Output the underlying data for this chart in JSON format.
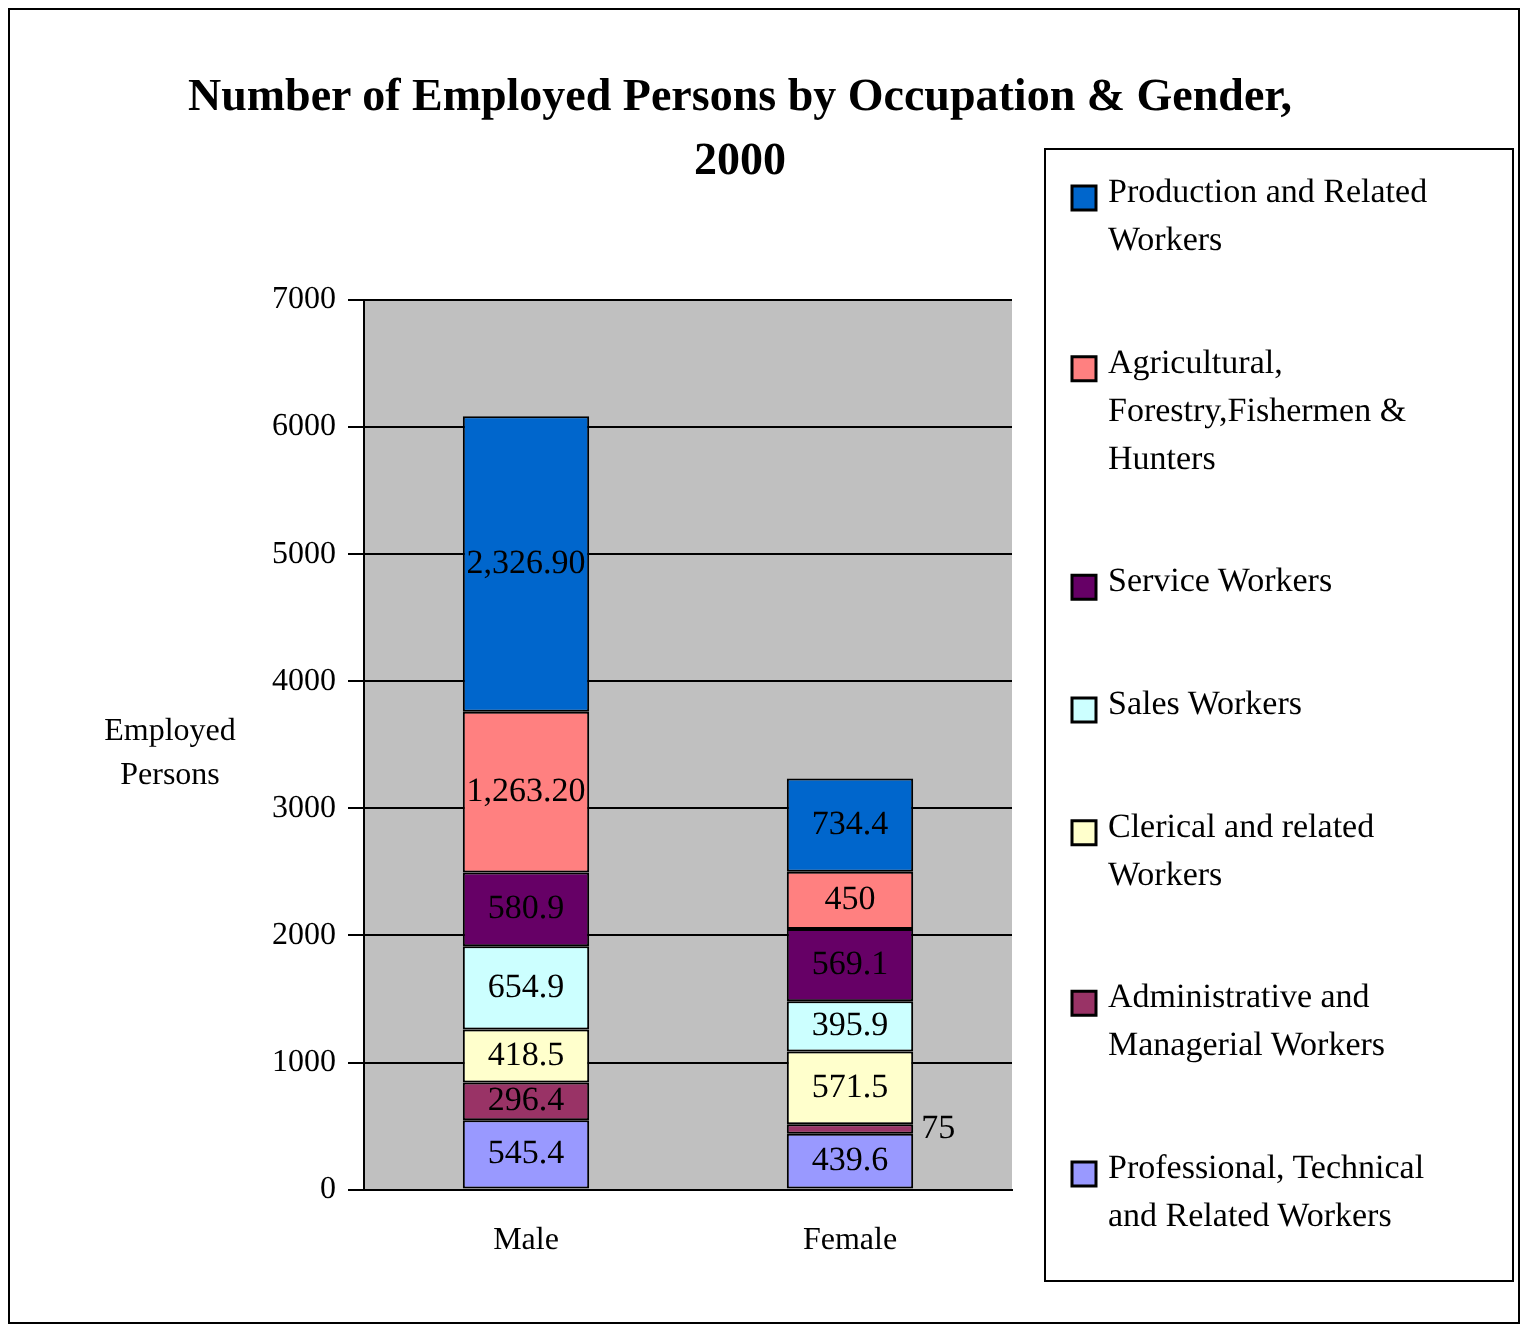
{
  "chart_data": {
    "type": "bar",
    "title": "Number of Employed Persons by Occupation & Gender, 2000",
    "ylabel": "Employed Persons",
    "categories": [
      "Male",
      "Female"
    ],
    "stacked": true,
    "ylim": [
      0,
      7000
    ],
    "yticks": [
      0,
      1000,
      2000,
      3000,
      4000,
      5000,
      6000,
      7000
    ],
    "grid": "y",
    "legend": "right",
    "series": [
      {
        "name": "Professional, Technical and Related Workers",
        "color": "#9999ff",
        "values": [
          545.4,
          439.6
        ],
        "value_labels": [
          "545.4",
          "439.6"
        ]
      },
      {
        "name": "Administrative and Managerial Workers",
        "color": "#993366",
        "values": [
          296.4,
          75
        ],
        "value_labels": [
          "296.4",
          "75"
        ]
      },
      {
        "name": "Clerical and related Workers",
        "color": "#ffffcc",
        "values": [
          418.5,
          571.5
        ],
        "value_labels": [
          "418.5",
          "571.5"
        ]
      },
      {
        "name": "Sales Workers",
        "color": "#ccffff",
        "values": [
          654.9,
          395.9
        ],
        "value_labels": [
          "654.9",
          "395.9"
        ]
      },
      {
        "name": "Service Workers",
        "color": "#660066",
        "values": [
          580.9,
          569.1
        ],
        "value_labels": [
          "580.9",
          "569.1"
        ]
      },
      {
        "name": "Agricultural, Forestry,Fishermen & Hunters",
        "color": "#ff8080",
        "values": [
          1263.2,
          450
        ],
        "value_labels": [
          "1,263.20",
          "450"
        ]
      },
      {
        "name": "Production and Related Workers",
        "color": "#0066cc",
        "values": [
          2326.9,
          734.4
        ],
        "value_labels": [
          "2,326.90",
          "734.4"
        ]
      }
    ]
  }
}
